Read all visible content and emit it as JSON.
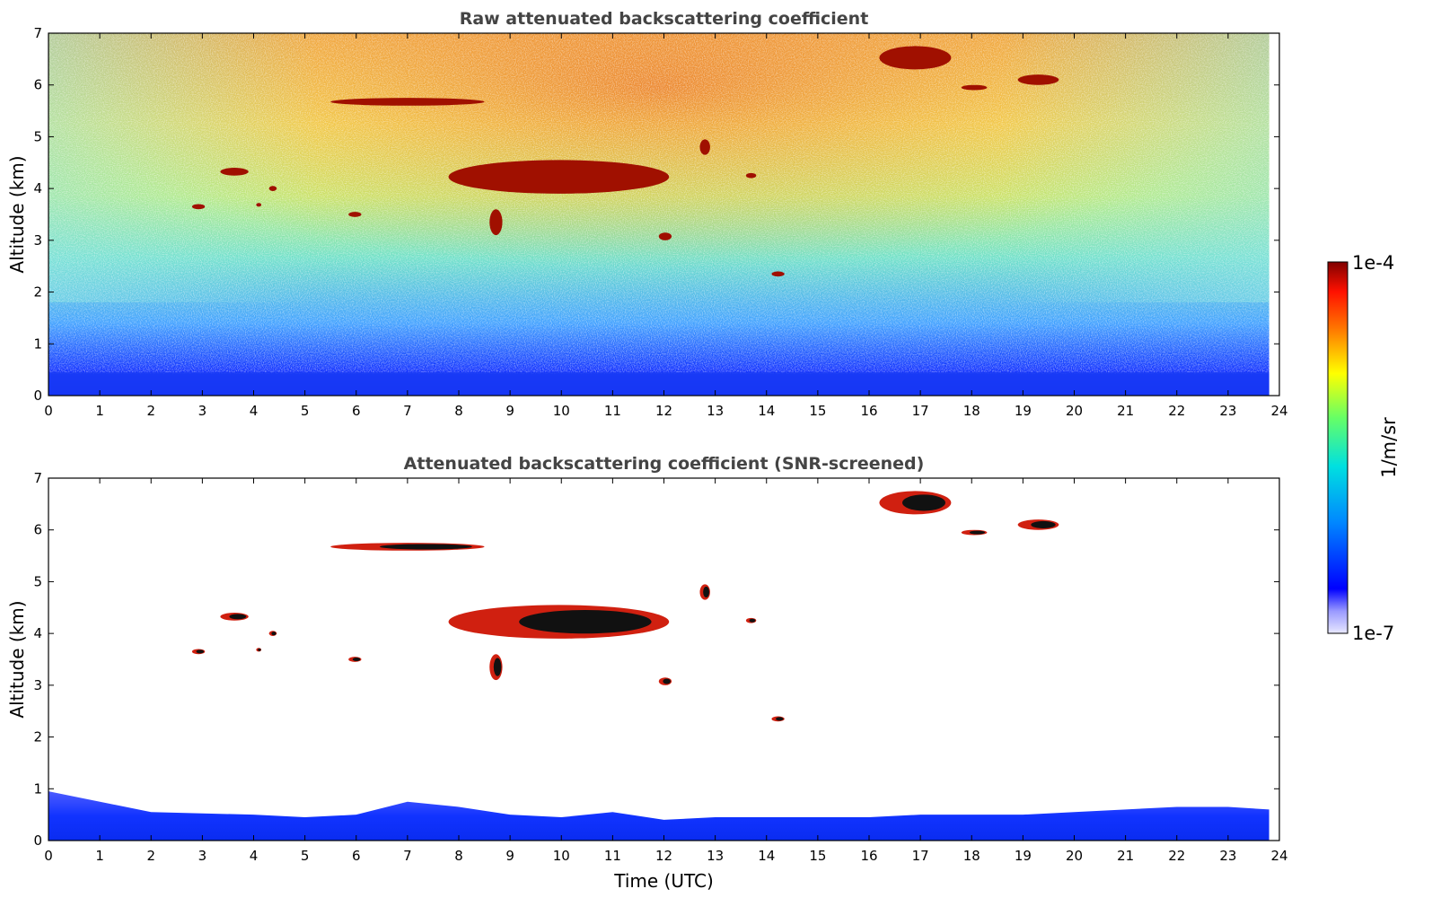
{
  "chart_data": [
    {
      "type": "heatmap",
      "title": "Raw attenuated backscattering coefficient",
      "xlabel": "",
      "ylabel": "Altitude (km)",
      "xlim": [
        0,
        24
      ],
      "ylim": [
        0,
        7
      ],
      "x_ticks": [
        "0",
        "1",
        "2",
        "3",
        "4",
        "5",
        "6",
        "7",
        "8",
        "9",
        "10",
        "11",
        "12",
        "13",
        "14",
        "15",
        "16",
        "17",
        "18",
        "19",
        "20",
        "21",
        "22",
        "23",
        "24"
      ],
      "y_ticks": [
        "0",
        "1",
        "2",
        "3",
        "4",
        "5",
        "6",
        "7"
      ],
      "data_x_extent": [
        0,
        23.8
      ],
      "background_noise": "signal decreasing with altitude, strong near-surface layer 0-0.5 km",
      "features": [
        {
          "kind": "cloud",
          "x": [
            3.35,
            3.9
          ],
          "y": [
            4.25,
            4.4
          ]
        },
        {
          "kind": "cloud",
          "x": [
            2.8,
            3.05
          ],
          "y": [
            3.6,
            3.7
          ]
        },
        {
          "kind": "cloud",
          "x": [
            4.05,
            4.15
          ],
          "y": [
            3.65,
            3.72
          ]
        },
        {
          "kind": "cloud",
          "x": [
            4.3,
            4.45
          ],
          "y": [
            3.95,
            4.05
          ]
        },
        {
          "kind": "cloud",
          "x": [
            5.85,
            6.1
          ],
          "y": [
            3.45,
            3.55
          ]
        },
        {
          "kind": "cloud",
          "x": [
            5.5,
            8.5
          ],
          "y": [
            5.6,
            5.75
          ]
        },
        {
          "kind": "cloud",
          "x": [
            7.8,
            12.1
          ],
          "y": [
            3.9,
            4.55
          ]
        },
        {
          "kind": "cloud",
          "x": [
            8.6,
            8.85
          ],
          "y": [
            3.1,
            3.6
          ]
        },
        {
          "kind": "cloud",
          "x": [
            11.9,
            12.15
          ],
          "y": [
            3.0,
            3.15
          ]
        },
        {
          "kind": "cloud",
          "x": [
            12.7,
            12.9
          ],
          "y": [
            4.65,
            4.95
          ]
        },
        {
          "kind": "cloud",
          "x": [
            13.6,
            13.8
          ],
          "y": [
            4.2,
            4.3
          ]
        },
        {
          "kind": "cloud",
          "x": [
            14.1,
            14.35
          ],
          "y": [
            2.3,
            2.4
          ]
        },
        {
          "kind": "cloud",
          "x": [
            16.2,
            17.6
          ],
          "y": [
            6.3,
            6.75
          ]
        },
        {
          "kind": "cloud",
          "x": [
            17.8,
            18.3
          ],
          "y": [
            5.9,
            6.0
          ]
        },
        {
          "kind": "cloud",
          "x": [
            18.9,
            19.7
          ],
          "y": [
            6.0,
            6.2
          ]
        }
      ]
    },
    {
      "type": "heatmap",
      "title": "Attenuated backscattering coefficient (SNR-screened)",
      "xlabel": "Time (UTC)",
      "ylabel": "Altitude (km)",
      "xlim": [
        0,
        24
      ],
      "ylim": [
        0,
        7
      ],
      "x_ticks": [
        "0",
        "1",
        "2",
        "3",
        "4",
        "5",
        "6",
        "7",
        "8",
        "9",
        "10",
        "11",
        "12",
        "13",
        "14",
        "15",
        "16",
        "17",
        "18",
        "19",
        "20",
        "21",
        "22",
        "23",
        "24"
      ],
      "y_ticks": [
        "0",
        "1",
        "2",
        "3",
        "4",
        "5",
        "6",
        "7"
      ],
      "data_x_extent": [
        0,
        23.8
      ],
      "boundary_layer_top_km": [
        [
          0,
          0.95
        ],
        [
          2,
          0.55
        ],
        [
          4,
          0.5
        ],
        [
          5,
          0.45
        ],
        [
          6,
          0.5
        ],
        [
          7,
          0.75
        ],
        [
          8,
          0.65
        ],
        [
          9,
          0.5
        ],
        [
          10,
          0.45
        ],
        [
          11,
          0.55
        ],
        [
          12,
          0.4
        ],
        [
          13,
          0.45
        ],
        [
          14,
          0.45
        ],
        [
          15,
          0.45
        ],
        [
          16,
          0.45
        ],
        [
          17,
          0.5
        ],
        [
          18,
          0.5
        ],
        [
          19,
          0.5
        ],
        [
          20,
          0.55
        ],
        [
          21,
          0.6
        ],
        [
          22,
          0.65
        ],
        [
          23,
          0.65
        ],
        [
          23.8,
          0.6
        ]
      ],
      "features": [
        {
          "kind": "cloud",
          "x": [
            3.35,
            3.9
          ],
          "y": [
            4.25,
            4.4
          ]
        },
        {
          "kind": "cloud",
          "x": [
            2.8,
            3.05
          ],
          "y": [
            3.6,
            3.7
          ]
        },
        {
          "kind": "cloud",
          "x": [
            4.05,
            4.15
          ],
          "y": [
            3.65,
            3.72
          ]
        },
        {
          "kind": "cloud",
          "x": [
            4.3,
            4.45
          ],
          "y": [
            3.95,
            4.05
          ]
        },
        {
          "kind": "cloud",
          "x": [
            5.85,
            6.1
          ],
          "y": [
            3.45,
            3.55
          ]
        },
        {
          "kind": "cloud",
          "x": [
            5.5,
            8.5
          ],
          "y": [
            5.6,
            5.75
          ]
        },
        {
          "kind": "cloud",
          "x": [
            7.8,
            12.1
          ],
          "y": [
            3.9,
            4.55
          ]
        },
        {
          "kind": "cloud",
          "x": [
            8.6,
            8.85
          ],
          "y": [
            3.1,
            3.6
          ]
        },
        {
          "kind": "cloud",
          "x": [
            11.9,
            12.15
          ],
          "y": [
            3.0,
            3.15
          ]
        },
        {
          "kind": "cloud",
          "x": [
            12.7,
            12.9
          ],
          "y": [
            4.65,
            4.95
          ]
        },
        {
          "kind": "cloud",
          "x": [
            13.6,
            13.8
          ],
          "y": [
            4.2,
            4.3
          ]
        },
        {
          "kind": "cloud",
          "x": [
            14.1,
            14.35
          ],
          "y": [
            2.3,
            2.4
          ]
        },
        {
          "kind": "cloud",
          "x": [
            16.2,
            17.6
          ],
          "y": [
            6.3,
            6.75
          ]
        },
        {
          "kind": "cloud",
          "x": [
            17.8,
            18.3
          ],
          "y": [
            5.9,
            6.0
          ]
        },
        {
          "kind": "cloud",
          "x": [
            18.9,
            19.7
          ],
          "y": [
            6.0,
            6.2
          ]
        }
      ]
    }
  ],
  "colorbar": {
    "label": "1/m/sr",
    "max_label": "1e-4",
    "min_label": "1e-7",
    "colormap": "jet",
    "colors": [
      "#e8e8ff",
      "#0000ff",
      "#00aaff",
      "#00ffcc",
      "#aaff44",
      "#ffff00",
      "#ff8800",
      "#ff2200",
      "#800000"
    ]
  }
}
